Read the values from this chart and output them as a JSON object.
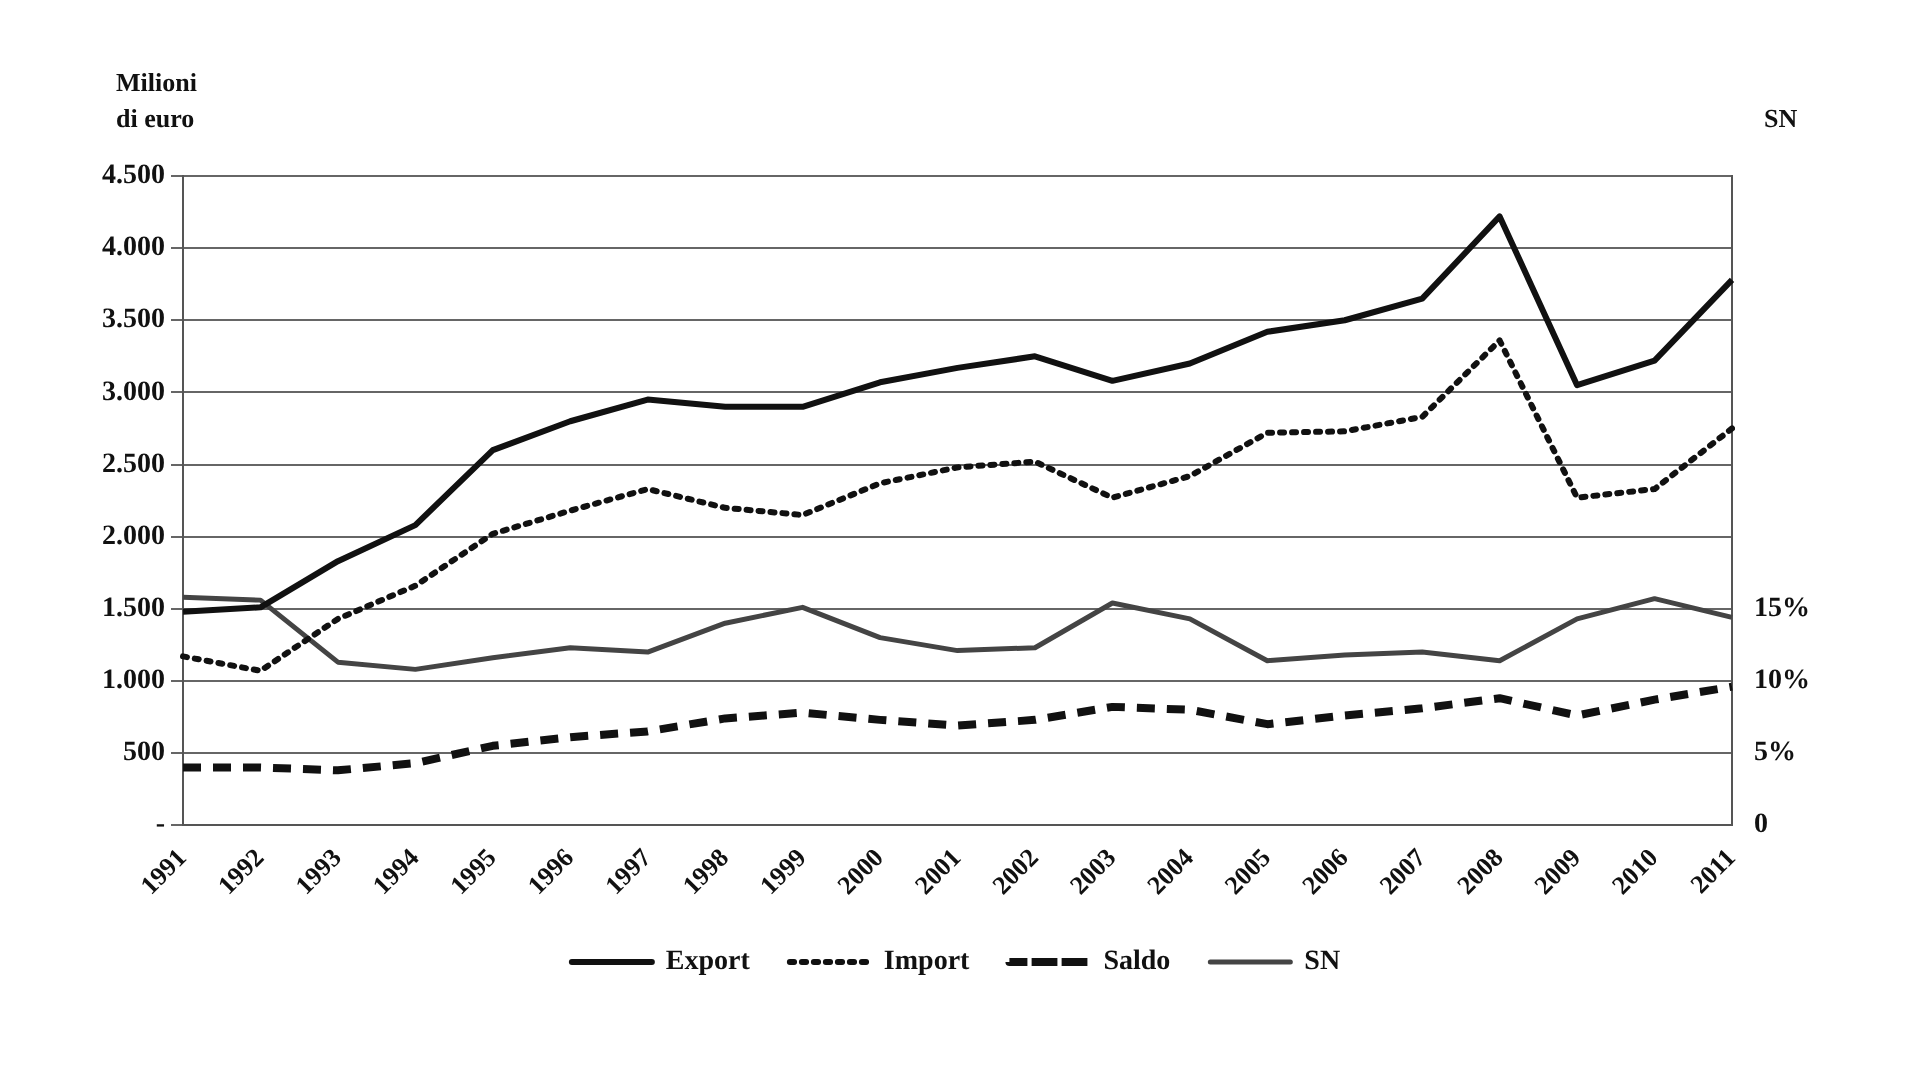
{
  "chart_data": {
    "type": "line",
    "ylabel": "Milioni di euro",
    "y2label": "SN",
    "categories": [
      "1991",
      "1992",
      "1993",
      "1994",
      "1995",
      "1996",
      "1997",
      "1998",
      "1999",
      "2000",
      "2001",
      "2002",
      "2003",
      "2004",
      "2005",
      "2006",
      "2007",
      "2008",
      "2009",
      "2010",
      "2011"
    ],
    "series": [
      {
        "name": "Export",
        "color": "#111111",
        "line_style": "solid",
        "values": [
          1480,
          1510,
          1830,
          2080,
          2600,
          2800,
          2950,
          2900,
          2900,
          3070,
          3170,
          3250,
          3080,
          3200,
          3420,
          3500,
          3650,
          4220,
          3050,
          3220,
          3780
        ]
      },
      {
        "name": "Import",
        "color": "#111111",
        "line_style": "dotted",
        "values": [
          1170,
          1070,
          1430,
          1660,
          2020,
          2180,
          2330,
          2200,
          2150,
          2370,
          2480,
          2520,
          2270,
          2420,
          2720,
          2730,
          2830,
          3360,
          2270,
          2330,
          2750
        ]
      },
      {
        "name": "Saldo",
        "color": "#111111",
        "line_style": "dashed",
        "values": [
          400,
          400,
          380,
          430,
          550,
          610,
          650,
          740,
          780,
          730,
          690,
          730,
          820,
          800,
          700,
          760,
          810,
          880,
          760,
          870,
          960
        ]
      },
      {
        "name": "SN",
        "color": "#444444",
        "line_style": "solid",
        "axis": "y2",
        "values": [
          15.8,
          15.6,
          11.3,
          10.8,
          11.6,
          12.3,
          12.0,
          14.0,
          15.1,
          13.0,
          12.1,
          12.3,
          15.4,
          14.3,
          11.4,
          11.8,
          12.0,
          11.4,
          14.3,
          15.7,
          14.4
        ]
      }
    ],
    "ylim": [
      0,
      4500
    ],
    "yticks": [
      {
        "value": 0,
        "label": "-"
      },
      {
        "value": 500,
        "label": "500"
      },
      {
        "value": 1000,
        "label": "1.000"
      },
      {
        "value": 1500,
        "label": "1.500"
      },
      {
        "value": 2000,
        "label": "2.000"
      },
      {
        "value": 2500,
        "label": "2.500"
      },
      {
        "value": 3000,
        "label": "3.000"
      },
      {
        "value": 3500,
        "label": "3.500"
      },
      {
        "value": 4000,
        "label": "4.000"
      },
      {
        "value": 4500,
        "label": "4.500"
      }
    ],
    "y2lim": [
      0,
      45
    ],
    "y2ticks": [
      0,
      {
        "value": 5,
        "label": "5%"
      },
      {
        "value": 10,
        "label": "10%"
      },
      {
        "value": 15,
        "label": "15%"
      }
    ],
    "grid": "y",
    "legend": "bottom",
    "marker": "none"
  }
}
